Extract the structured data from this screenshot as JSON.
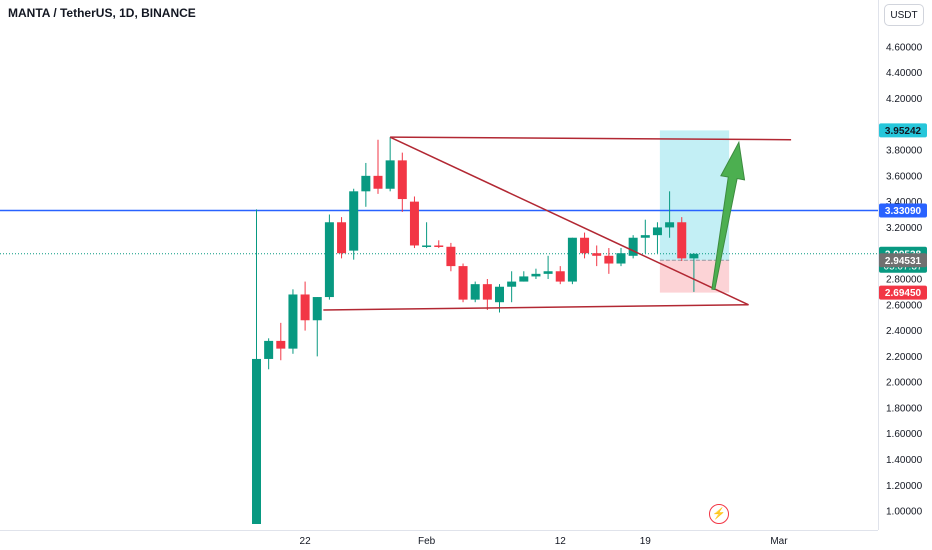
{
  "header": {
    "title": "MANTA / TetherUS, 1D, BINANCE",
    "currency": "USDT"
  },
  "chart_data": {
    "type": "candlestick",
    "symbol": "MANTA / TetherUS",
    "interval": "1D",
    "exchange": "BINANCE",
    "ylim": [
      0.9,
      4.7
    ],
    "y_ticks": [
      "1.00000",
      "1.20000",
      "1.40000",
      "1.60000",
      "1.80000",
      "2.00000",
      "2.20000",
      "2.40000",
      "2.60000",
      "2.80000",
      "3.20000",
      "3.40000",
      "3.60000",
      "3.80000",
      "4.20000",
      "4.40000",
      "4.60000"
    ],
    "x_ticks": [
      {
        "label": "22",
        "day": 4
      },
      {
        "label": "Feb",
        "day": 14
      },
      {
        "label": "12",
        "day": 25
      },
      {
        "label": "19",
        "day": 32
      },
      {
        "label": "Mar",
        "day": 43
      }
    ],
    "candles": [
      {
        "o": 0.9,
        "h": 3.34,
        "l": 0.9,
        "c": 2.18
      },
      {
        "o": 2.18,
        "h": 2.34,
        "l": 2.1,
        "c": 2.32
      },
      {
        "o": 2.32,
        "h": 2.46,
        "l": 2.17,
        "c": 2.26
      },
      {
        "o": 2.26,
        "h": 2.72,
        "l": 2.22,
        "c": 2.68
      },
      {
        "o": 2.68,
        "h": 2.78,
        "l": 2.4,
        "c": 2.48
      },
      {
        "o": 2.48,
        "h": 2.66,
        "l": 2.2,
        "c": 2.66
      },
      {
        "o": 2.66,
        "h": 3.3,
        "l": 2.64,
        "c": 3.24
      },
      {
        "o": 3.24,
        "h": 3.28,
        "l": 2.96,
        "c": 3.0
      },
      {
        "o": 3.02,
        "h": 3.5,
        "l": 2.95,
        "c": 3.48
      },
      {
        "o": 3.48,
        "h": 3.7,
        "l": 3.36,
        "c": 3.6
      },
      {
        "o": 3.6,
        "h": 3.88,
        "l": 3.46,
        "c": 3.5
      },
      {
        "o": 3.5,
        "h": 3.9,
        "l": 3.48,
        "c": 3.72
      },
      {
        "o": 3.72,
        "h": 3.78,
        "l": 3.32,
        "c": 3.42
      },
      {
        "o": 3.4,
        "h": 3.44,
        "l": 3.04,
        "c": 3.06
      },
      {
        "o": 3.06,
        "h": 3.24,
        "l": 3.04,
        "c": 3.06
      },
      {
        "o": 3.06,
        "h": 3.1,
        "l": 3.04,
        "c": 3.05
      },
      {
        "o": 3.05,
        "h": 3.08,
        "l": 2.86,
        "c": 2.9
      },
      {
        "o": 2.9,
        "h": 2.92,
        "l": 2.62,
        "c": 2.64
      },
      {
        "o": 2.64,
        "h": 2.78,
        "l": 2.62,
        "c": 2.76
      },
      {
        "o": 2.76,
        "h": 2.8,
        "l": 2.56,
        "c": 2.64
      },
      {
        "o": 2.62,
        "h": 2.76,
        "l": 2.54,
        "c": 2.74
      },
      {
        "o": 2.74,
        "h": 2.86,
        "l": 2.62,
        "c": 2.78
      },
      {
        "o": 2.78,
        "h": 2.86,
        "l": 2.78,
        "c": 2.82
      },
      {
        "o": 2.82,
        "h": 2.88,
        "l": 2.8,
        "c": 2.84
      },
      {
        "o": 2.84,
        "h": 2.98,
        "l": 2.8,
        "c": 2.86
      },
      {
        "o": 2.86,
        "h": 2.9,
        "l": 2.76,
        "c": 2.78
      },
      {
        "o": 2.78,
        "h": 3.12,
        "l": 2.76,
        "c": 3.12
      },
      {
        "o": 3.12,
        "h": 3.16,
        "l": 2.96,
        "c": 3.0
      },
      {
        "o": 3.0,
        "h": 3.06,
        "l": 2.9,
        "c": 2.98
      },
      {
        "o": 2.98,
        "h": 3.04,
        "l": 2.84,
        "c": 2.92
      },
      {
        "o": 2.92,
        "h": 3.04,
        "l": 2.9,
        "c": 3.0
      },
      {
        "o": 2.98,
        "h": 3.14,
        "l": 2.96,
        "c": 3.12
      },
      {
        "o": 3.12,
        "h": 3.26,
        "l": 3.0,
        "c": 3.14
      },
      {
        "o": 3.14,
        "h": 3.24,
        "l": 3.0,
        "c": 3.2
      },
      {
        "o": 3.2,
        "h": 3.48,
        "l": 3.12,
        "c": 3.24
      },
      {
        "o": 3.24,
        "h": 3.28,
        "l": 2.94,
        "c": 2.96
      },
      {
        "o": 2.96,
        "h": 3.0,
        "l": 2.7,
        "c": 2.99538
      }
    ],
    "horizontal_lines": [
      {
        "price": 3.3309,
        "color": "#2962ff"
      }
    ],
    "trendlines": [
      {
        "from": {
          "day": 11,
          "price": 3.9
        },
        "to": {
          "day": 44,
          "price": 3.88
        }
      },
      {
        "from": {
          "day": 11,
          "price": 3.9
        },
        "to": {
          "day": 40.5,
          "price": 2.6
        }
      },
      {
        "from": {
          "day": 5.5,
          "price": 2.56
        },
        "to": {
          "day": 40.5,
          "price": 2.6
        }
      }
    ],
    "position": {
      "type": "long",
      "start_day": 33.2,
      "end_day": 38.9,
      "target": 3.95242,
      "entry": 2.94531,
      "stop": 2.6945
    },
    "arrow": {
      "from": {
        "day": 37.6,
        "price": 2.72
      },
      "to": {
        "day": 39.7,
        "price": 3.86
      },
      "color": "#4caf50"
    },
    "price_tags": [
      {
        "label": "3.95242",
        "price": 3.95242,
        "bg": "#26c6da",
        "fg": "#131722"
      },
      {
        "label": "3.33090",
        "price": 3.3309,
        "bg": "#2962ff",
        "fg": "#ffffff"
      },
      {
        "label": "2.99538",
        "price": 2.99538,
        "bg": "#089981",
        "fg": "#ffffff",
        "sub": "05:07:37"
      },
      {
        "label": "2.94531",
        "price": 2.94531,
        "bg": "#707070",
        "fg": "#ffffff"
      },
      {
        "label": "2.69450",
        "price": 2.6945,
        "bg": "#f23645",
        "fg": "#ffffff"
      }
    ],
    "colors": {
      "up": "#089981",
      "down": "#f23645",
      "trend": "#b22833",
      "current": "#089981"
    }
  }
}
